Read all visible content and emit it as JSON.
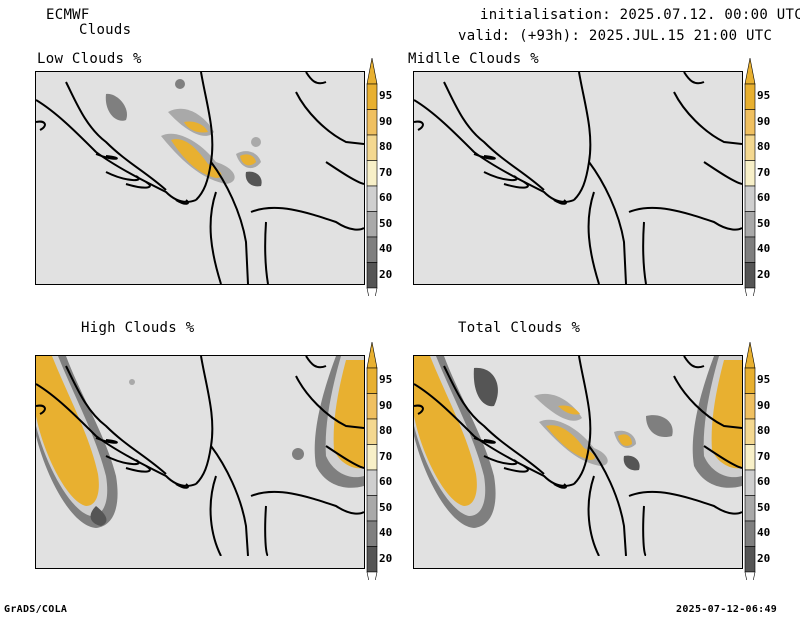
{
  "header": {
    "model": "ECMWF",
    "product": "Clouds",
    "init": "initialisation: 2025.07.12. 00:00 UTC",
    "valid": "valid: (+93h): 2025.JUL.15 21:00 UTC"
  },
  "panels": [
    {
      "title": "Low Clouds %"
    },
    {
      "title": "Midlle Clouds %"
    },
    {
      "title": "High Clouds %"
    },
    {
      "title": "Total Clouds %"
    }
  ],
  "colorbar": {
    "levels": [
      "95",
      "90",
      "80",
      "70",
      "60",
      "50",
      "40",
      "20"
    ],
    "colors": [
      "#e8b030",
      "#f0c060",
      "#f4d890",
      "#f8f0c8",
      "#cfcfcf",
      "#a9a9a9",
      "#7f7f7f",
      "#555555"
    ]
  },
  "footer": {
    "left": "GrADS/COLA",
    "right": "2025-07-12-06:49"
  }
}
